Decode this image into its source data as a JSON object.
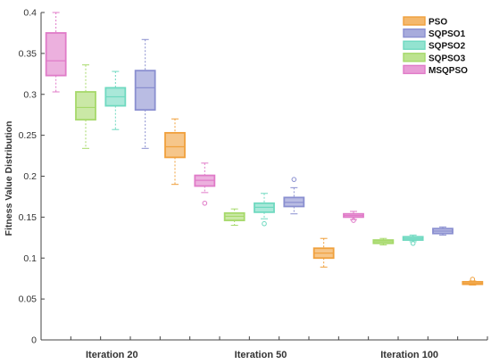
{
  "chart_data": {
    "type": "box",
    "ylabel": "Fitness Value Distribution",
    "ylim": [
      0,
      0.4
    ],
    "yticks": [
      0,
      0.05,
      0.1,
      0.15,
      0.2,
      0.25,
      0.3,
      0.35,
      0.4
    ],
    "ytick_labels": [
      "0",
      "0.05",
      "0.1",
      "0.15",
      "0.2",
      "0.25",
      "0.3",
      "0.35",
      "0.4"
    ],
    "groups": [
      "Iteration 20",
      "Iteration 50",
      "Iteration 100"
    ],
    "legend_position": "top-right",
    "grid": false,
    "series": [
      {
        "name": "PSO",
        "color": "#F0A03C"
      },
      {
        "name": "SQPSO1",
        "color": "#8A8FD0"
      },
      {
        "name": "SQPSO2",
        "color": "#6FD9C0"
      },
      {
        "name": "SQPSO3",
        "color": "#A6D96A"
      },
      {
        "name": "MSQPSO",
        "color": "#E07BC8"
      }
    ],
    "boxes": [
      {
        "group": "Iteration 20",
        "series": "MSQPSO",
        "whisker_low": 0.303,
        "q1": 0.323,
        "median": 0.341,
        "q3": 0.375,
        "whisker_high": 0.4,
        "outliers": []
      },
      {
        "group": "Iteration 20",
        "series": "SQPSO3",
        "whisker_low": 0.234,
        "q1": 0.269,
        "median": 0.284,
        "q3": 0.303,
        "whisker_high": 0.336,
        "outliers": []
      },
      {
        "group": "Iteration 20",
        "series": "SQPSO2",
        "whisker_low": 0.257,
        "q1": 0.286,
        "median": 0.297,
        "q3": 0.308,
        "whisker_high": 0.328,
        "outliers": []
      },
      {
        "group": "Iteration 20",
        "series": "SQPSO1",
        "whisker_low": 0.234,
        "q1": 0.281,
        "median": 0.308,
        "q3": 0.329,
        "whisker_high": 0.367,
        "outliers": []
      },
      {
        "group": "Iteration 20",
        "series": "PSO",
        "whisker_low": 0.19,
        "q1": 0.223,
        "median": 0.236,
        "q3": 0.253,
        "whisker_high": 0.27,
        "outliers": []
      },
      {
        "group": "Iteration 50",
        "series": "MSQPSO",
        "whisker_low": 0.18,
        "q1": 0.188,
        "median": 0.195,
        "q3": 0.201,
        "whisker_high": 0.216,
        "outliers": [
          0.167
        ]
      },
      {
        "group": "Iteration 50",
        "series": "SQPSO3",
        "whisker_low": 0.14,
        "q1": 0.146,
        "median": 0.151,
        "q3": 0.155,
        "whisker_high": 0.16,
        "outliers": []
      },
      {
        "group": "Iteration 50",
        "series": "SQPSO2",
        "whisker_low": 0.148,
        "q1": 0.156,
        "median": 0.162,
        "q3": 0.167,
        "whisker_high": 0.179,
        "outliers": [
          0.142
        ]
      },
      {
        "group": "Iteration 50",
        "series": "SQPSO1",
        "whisker_low": 0.154,
        "q1": 0.163,
        "median": 0.168,
        "q3": 0.174,
        "whisker_high": 0.186,
        "outliers": [
          0.196
        ]
      },
      {
        "group": "Iteration 50",
        "series": "PSO",
        "whisker_low": 0.089,
        "q1": 0.1,
        "median": 0.106,
        "q3": 0.112,
        "whisker_high": 0.124,
        "outliers": []
      },
      {
        "group": "Iteration 100",
        "series": "MSQPSO",
        "whisker_low": 0.147,
        "q1": 0.15,
        "median": 0.152,
        "q3": 0.154,
        "whisker_high": 0.157,
        "outliers": [
          0.146
        ]
      },
      {
        "group": "Iteration 100",
        "series": "SQPSO3",
        "whisker_low": 0.116,
        "q1": 0.118,
        "median": 0.12,
        "q3": 0.122,
        "whisker_high": 0.124,
        "outliers": []
      },
      {
        "group": "Iteration 100",
        "series": "SQPSO2",
        "whisker_low": 0.12,
        "q1": 0.122,
        "median": 0.124,
        "q3": 0.126,
        "whisker_high": 0.128,
        "outliers": [
          0.118
        ]
      },
      {
        "group": "Iteration 100",
        "series": "SQPSO1",
        "whisker_low": 0.128,
        "q1": 0.13,
        "median": 0.133,
        "q3": 0.136,
        "whisker_high": 0.138,
        "outliers": []
      },
      {
        "group": "Iteration 100",
        "series": "PSO",
        "whisker_low": 0.067,
        "q1": 0.068,
        "median": 0.069,
        "q3": 0.071,
        "whisker_high": 0.072,
        "outliers": [
          0.074
        ]
      }
    ]
  }
}
